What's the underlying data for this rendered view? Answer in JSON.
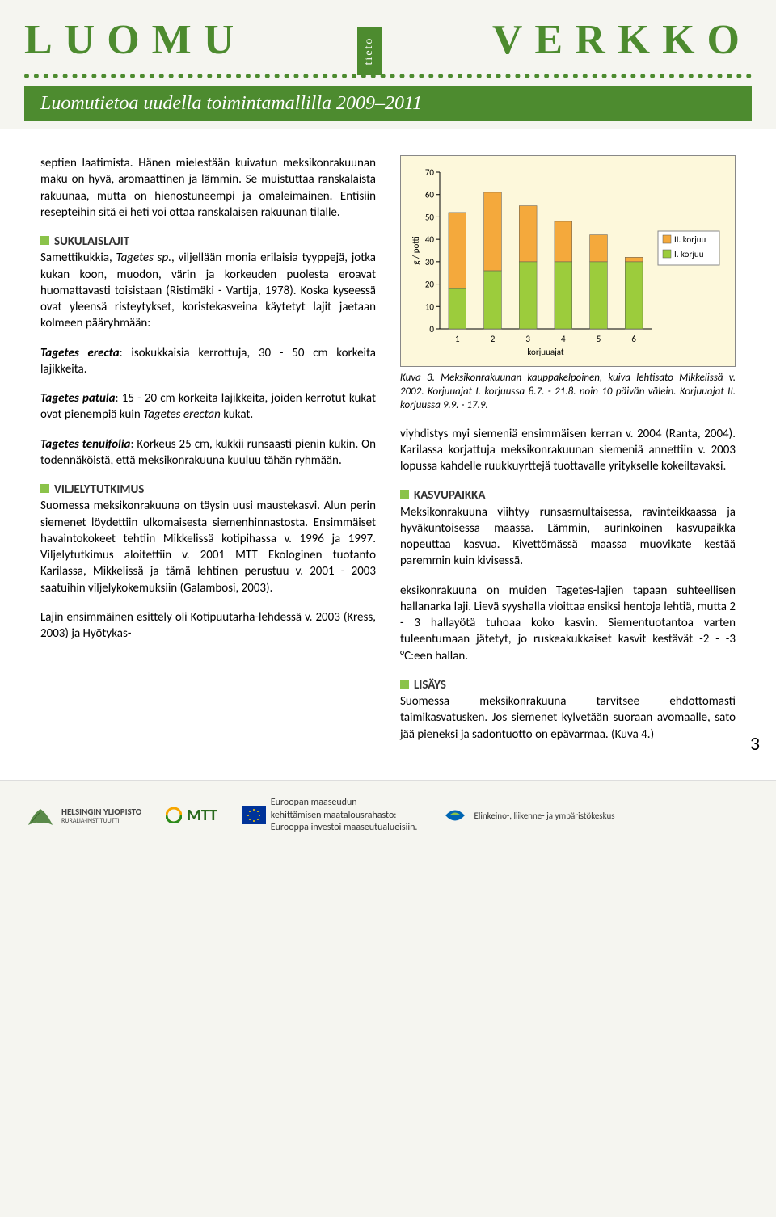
{
  "header": {
    "logo_left": "LUOMU",
    "tieto": "tieto",
    "logo_right": "VERKKO",
    "subtitle": "Luomutietoa uudella toimintamallilla 2009–2011"
  },
  "left_column": {
    "p1": "septien laatimista. Hänen mielestään kuivatun meksikonrakuunan maku on hyvä, aromaattinen ja lämmin. Se muistuttaa ranskalaista rakuunaa, mutta on hienostuneempi ja omaleimainen. Entisiin resepteihin sitä ei heti voi ottaa ranskalaisen rakuunan tilalle.",
    "sec_sukulaislajit": "SUKULAISLAJIT",
    "p2a": "Samettikukkia, ",
    "p2_it": "Tagetes sp.",
    "p2b": ", viljellään monia erilaisia tyyppejä, jotka kukan koon, muodon, värin ja korkeuden puolesta eroavat huomattavasti toisistaan (Ristimäki - Vartija, 1978). Koska kyseessä ovat yleensä risteytykset, koristekasveina käytetyt lajit jaetaan kolmeen pääryhmään:",
    "sp1_b": "Tagetes erecta",
    "sp1_t": ": isokukkaisia kerrottuja, 30 - 50 cm korkeita lajikkeita.",
    "sp2_b": "Tagetes patula",
    "sp2_t": ": 15 - 20 cm korkeita lajikkeita, joiden kerrotut kukat ovat pienempiä kuin ",
    "sp2_it": "Tagetes erectan",
    "sp2_t2": " kukat.",
    "sp3_b": "Tagetes tenuifolia",
    "sp3_t": ": Korkeus 25 cm, kukkii runsaasti pienin kukin. On todennäköistä, että meksikonrakuuna kuuluu tähän ryhmään.",
    "sec_viljelytutkimus": "VILJELYTUTKIMUS",
    "p3": "Suomessa meksikonrakuuna on täysin uusi maustekasvi. Alun perin siemenet löydettiin ulkomaisesta siemenhinnastosta. Ensimmäiset havaintokokeet tehtiin Mikkelissä kotipihassa v. 1996 ja 1997. Viljelytutkimus aloitettiin v. 2001 MTT Ekologinen tuotanto Karilassa, Mikkelissä ja tämä lehtinen perustuu v. 2001 - 2003 saatuihin viljelykokemuksiin (Galambosi, 2003).",
    "p4": "Lajin ensimmäinen esittely oli Kotipuutarha-lehdessä v. 2003 (Kress, 2003) ja Hyötykas-"
  },
  "chart": {
    "type": "stacked-bar",
    "background_color": "#fdf8db",
    "ylabel": "g / potti",
    "xlabel": "korjuuajat",
    "ylim": [
      0,
      70
    ],
    "ytick_step": 10,
    "yticks": [
      0,
      10,
      20,
      30,
      40,
      50,
      60,
      70
    ],
    "categories": [
      "1",
      "2",
      "3",
      "4",
      "5",
      "6"
    ],
    "series": [
      {
        "name": "I. korjuu",
        "color": "#9ccc3c",
        "values": [
          18,
          26,
          30,
          30,
          30,
          30
        ]
      },
      {
        "name": "II. korjuu",
        "color": "#f4a93c",
        "values": [
          34,
          35,
          25,
          18,
          12,
          2
        ]
      }
    ],
    "legend": [
      {
        "label": "II. korjuu",
        "color": "#f4a93c"
      },
      {
        "label": "I. korjuu",
        "color": "#9ccc3c"
      }
    ],
    "bar_width": 0.5,
    "axis_color": "#000",
    "label_fontsize": 11
  },
  "right_column": {
    "caption": "Kuva 3. Meksikonrakuunan kauppakelpoinen, kuiva lehtisato Mikkelissä v. 2002. Korjuuajat I. korjuussa 8.7. - 21.8. noin 10 päivän välein. Korjuuajat II. korjuussa 9.9. - 17.9.",
    "p1": "viyhdistys myi siemeniä ensimmäisen kerran v. 2004 (Ranta, 2004). Karilassa korjattuja meksikonrakuunan siemeniä annettiin v. 2003 lopussa kahdelle ruukkuyrttejä tuottavalle yritykselle kokeiltavaksi.",
    "sec_kasvupaikka": "KASVUPAIKKA",
    "p2": "Meksikonrakuuna viihtyy runsasmultaisessa, ravinteikkaassa ja hyväkuntoisessa maassa. Lämmin, aurinkoinen kasvupaikka nopeuttaa kasvua. Kivettömässä maassa muovikate kestää paremmin kuin kivisessä.",
    "p3": "eksikonrakuuna on muiden Tagetes-lajien tapaan suhteellisen hallanarka laji. Lievä syyshalla vioittaa ensiksi hentoja lehtiä, mutta 2 - 3 hallayötä tuhoaa koko kasvin. Siementuotantoa varten tuleentumaan jätetyt, jo ruskeakukkaiset kasvit kestävät -2 - -3 °C:een hallan.",
    "sec_lisays": "LISÄYS",
    "p4": "Suomessa meksikonrakuuna tarvitsee ehdottomasti taimikasvatusken. Jos siemenet kylvetään suoraan avomaalle, sato jää pieneksi ja sadontuotto on epävarmaa. (Kuva 4.)"
  },
  "page_number": "3",
  "footer": {
    "hy": "HELSINGIN YLIOPISTO",
    "hy_sub": "RURALIA-INSTITUUTTI",
    "mtt": "MTT",
    "eu_text1": "Euroopan maaseudun",
    "eu_text2": "kehittämisen maatalousrahasto:",
    "eu_text3": "Eurooppa investoi maaseutualueisiin.",
    "ely": "Elinkeino-, liikenne- ja ympäristökeskus"
  }
}
